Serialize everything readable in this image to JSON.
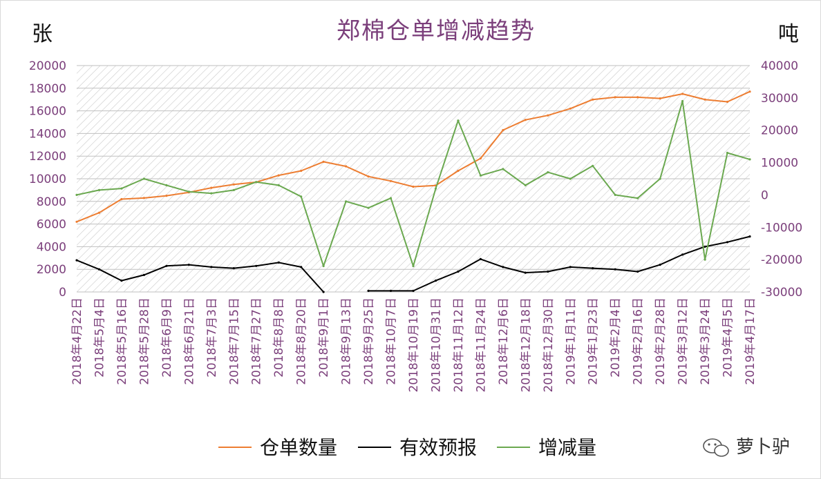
{
  "chart_data": {
    "type": "line",
    "title": "郑棉仓单增减趋势",
    "y_left_label": "张",
    "y_right_label": "吨",
    "y_left_ticks": [
      "20000",
      "18000",
      "16000",
      "14000",
      "12000",
      "10000",
      "8000",
      "6000",
      "4000",
      "2000",
      "0"
    ],
    "y_right_ticks": [
      "40000",
      "30000",
      "20000",
      "10000",
      "0",
      "-10000",
      "-20000",
      "-30000"
    ],
    "ylim_left": [
      0,
      20000
    ],
    "ylim_right": [
      -30000,
      40000
    ],
    "grid": true,
    "legend_position": "bottom",
    "x_labels": [
      "2018年4月22日",
      "2018年5月4日",
      "2018年5月16日",
      "2018年5月28日",
      "2018年6月9日",
      "2018年6月21日",
      "2018年7月3日",
      "2018年7月15日",
      "2018年7月27日",
      "2018年8月8日",
      "2018年8月20日",
      "2018年9月1日",
      "2018年9月13日",
      "2018年9月25日",
      "2018年10月7日",
      "2018年10月19日",
      "2018年10月31日",
      "2018年11月12日",
      "2018年11月24日",
      "2018年12月6日",
      "2018年12月18日",
      "2018年12月30日",
      "2019年1月11日",
      "2019年1月23日",
      "2019年2月4日",
      "2019年2月16日",
      "2019年2月28日",
      "2019年3月12日",
      "2019年3月24日",
      "2019年4月5日",
      "2019年4月17日"
    ],
    "series": [
      {
        "name": "仓单数量",
        "axis": "left",
        "color": "#ed7d31",
        "values": [
          6200,
          7000,
          8200,
          8300,
          8500,
          8800,
          9200,
          9500,
          9700,
          10300,
          10700,
          11500,
          11100,
          10200,
          9800,
          9300,
          9400,
          10700,
          11800,
          14300,
          15200,
          15600,
          16200,
          17000,
          17200,
          17200,
          17100,
          17500,
          17000,
          16800,
          17700
        ]
      },
      {
        "name": "有效预报",
        "axis": "left",
        "color": "#000000",
        "values": [
          2800,
          2000,
          1000,
          1500,
          2300,
          2400,
          2200,
          2100,
          2300,
          2600,
          2200,
          0,
          null,
          100,
          100,
          100,
          1000,
          1800,
          2900,
          2200,
          1700,
          1800,
          2200,
          2100,
          2000,
          1800,
          2400,
          3300,
          4000,
          4400,
          4900
        ]
      },
      {
        "name": "增减量",
        "axis": "right",
        "color": "#6aa84f",
        "values": [
          0,
          1500,
          2000,
          5000,
          3000,
          1000,
          500,
          1500,
          4000,
          3000,
          -500,
          -22000,
          -2000,
          -4000,
          -1000,
          -22000,
          2000,
          23000,
          6000,
          8000,
          3000,
          7000,
          5000,
          9000,
          0,
          -1000,
          5000,
          29000,
          -20000,
          13000,
          11000
        ]
      }
    ]
  },
  "legend": {
    "items": [
      {
        "label": "仓单数量",
        "color": "#ed7d31"
      },
      {
        "label": "有效预报",
        "color": "#000000"
      },
      {
        "label": "增减量",
        "color": "#6aa84f"
      }
    ]
  },
  "watermark": {
    "text": "萝卜驴"
  }
}
